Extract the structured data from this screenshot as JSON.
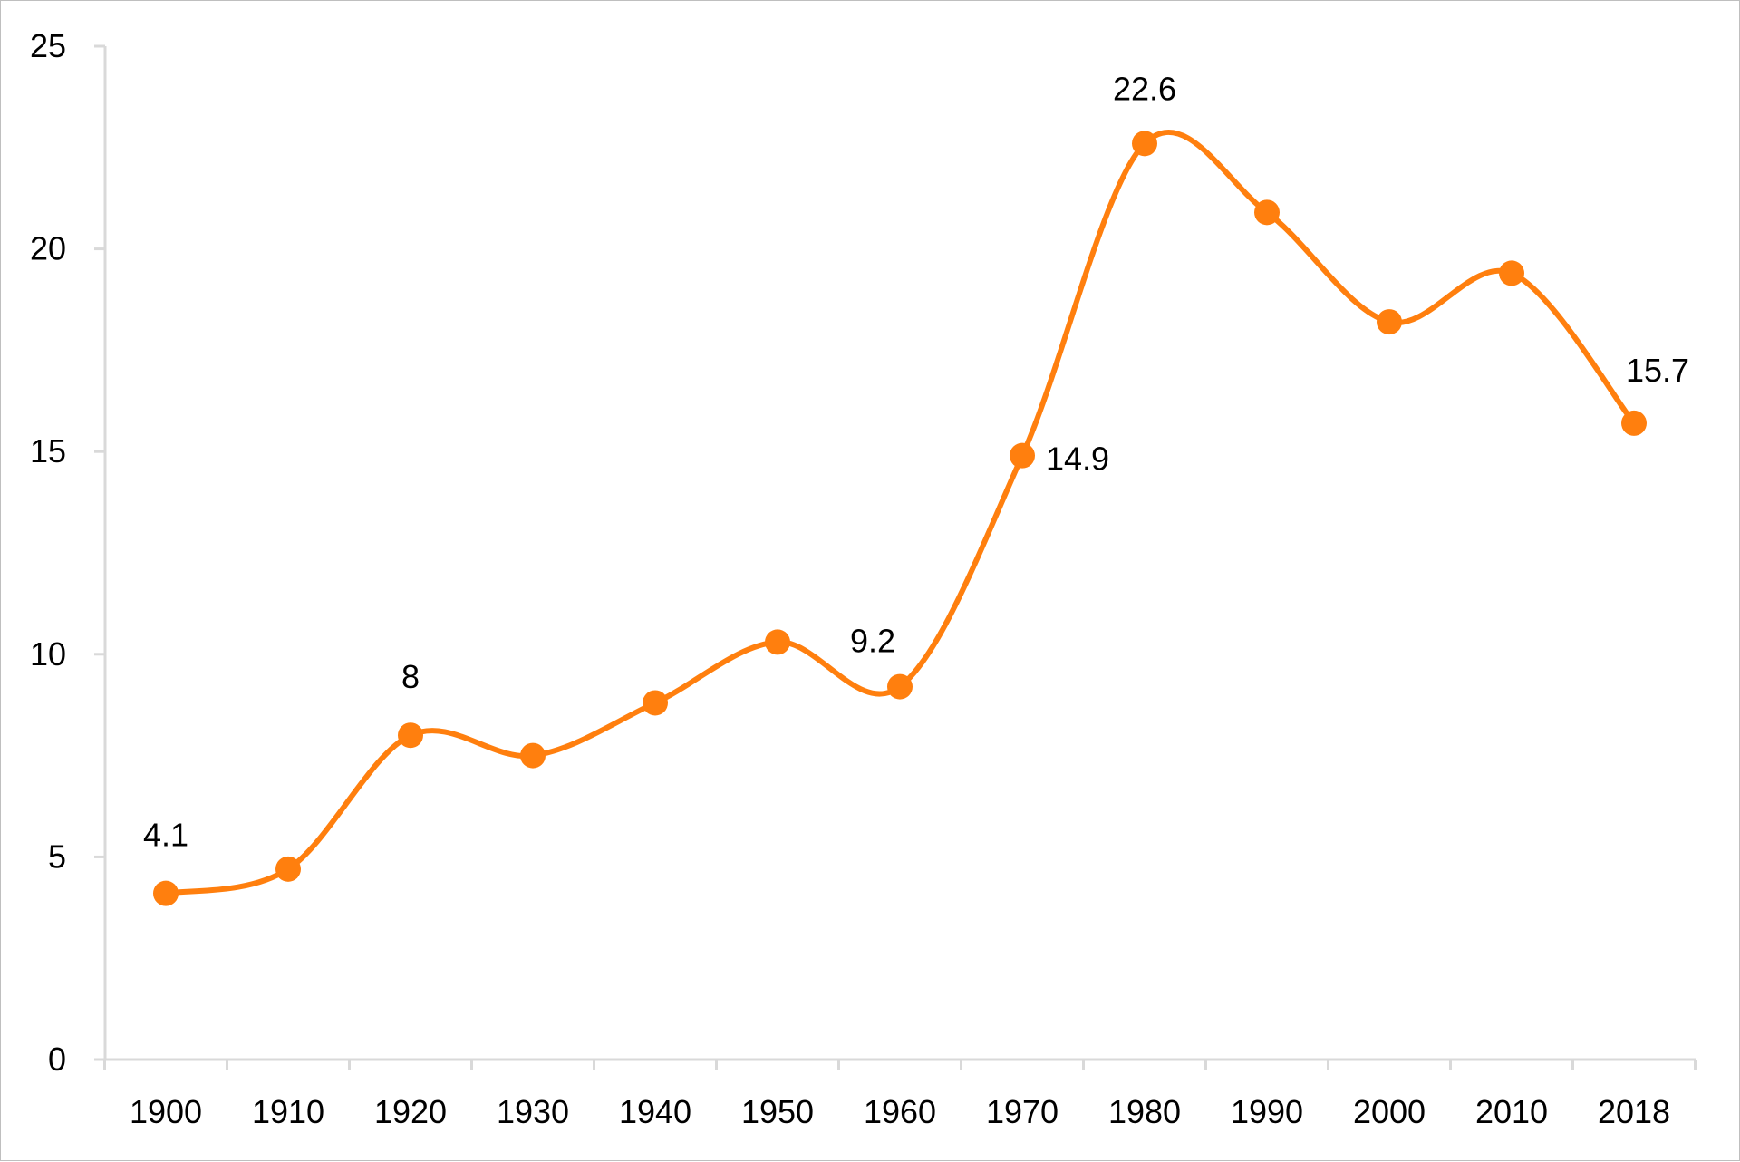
{
  "chart_data": {
    "type": "line",
    "title": "",
    "xlabel": "",
    "ylabel": "",
    "x": [
      "1900",
      "1910",
      "1920",
      "1930",
      "1940",
      "1950",
      "1960",
      "1970",
      "1980",
      "1990",
      "2000",
      "2010",
      "2018"
    ],
    "series": [
      {
        "values": [
          4.1,
          4.7,
          8.0,
          7.5,
          8.8,
          10.3,
          9.2,
          14.9,
          22.6,
          20.9,
          18.2,
          19.4,
          15.7
        ],
        "color": "#FF7F0E"
      }
    ],
    "data_labels": [
      {
        "x": "1900",
        "text": "4.1"
      },
      {
        "x": "1920",
        "text": "8"
      },
      {
        "x": "1960",
        "text": "9.2"
      },
      {
        "x": "1970",
        "text": "14.9"
      },
      {
        "x": "1980",
        "text": "22.6"
      },
      {
        "x": "2018",
        "text": "15.7"
      }
    ],
    "y_ticks": [
      "0",
      "5",
      "10",
      "15",
      "20",
      "25"
    ],
    "ylim": [
      0,
      25
    ],
    "smooth": true,
    "markers": true,
    "grid": false,
    "legend": "none",
    "axis_color": "#D9D9D9"
  }
}
